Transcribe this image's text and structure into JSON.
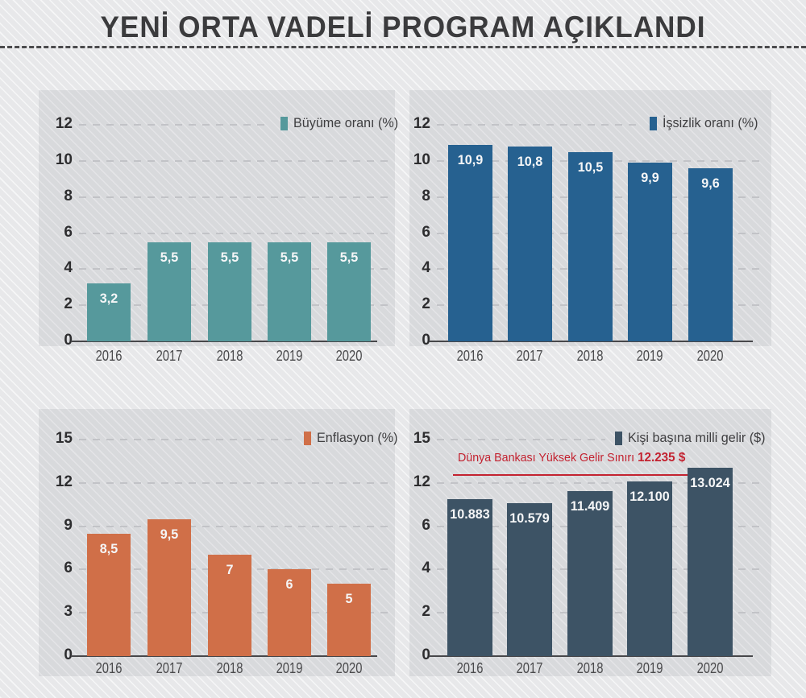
{
  "title": "YENİ ORTA VADELİ PROGRAM AÇIKLANDI",
  "colors": {
    "background": "#ebeced",
    "panel_tint": "#dfe0e3",
    "teal": "#56999c",
    "blue": "#266190",
    "orange": "#d06f48",
    "slate": "#3d5365",
    "red": "#c32230",
    "axis": "#47474a",
    "tick_text": "#2d2d2f",
    "value_text": "#f5f6f7"
  },
  "chart_data": [
    {
      "id": "growth",
      "type": "bar",
      "title": "",
      "legend": "Büyüme oranı (%)",
      "legend_position": "top-right",
      "color": "#56999c",
      "categories": [
        "2016",
        "2017",
        "2018",
        "2019",
        "2020"
      ],
      "values": [
        3.2,
        5.5,
        5.5,
        5.5,
        5.5
      ],
      "value_labels": [
        "3,2",
        "5,5",
        "5,5",
        "5,5",
        "5,5"
      ],
      "yticks": [
        "12",
        "10",
        "8",
        "6",
        "4",
        "2",
        "0"
      ],
      "ylim": [
        0,
        12
      ],
      "grid": true
    },
    {
      "id": "unemployment",
      "type": "bar",
      "title": "",
      "legend": "İşsizlik oranı (%)",
      "legend_position": "top-right",
      "color": "#266190",
      "categories": [
        "2016",
        "2017",
        "2018",
        "2019",
        "2020"
      ],
      "values": [
        10.9,
        10.8,
        10.5,
        9.9,
        9.6
      ],
      "value_labels": [
        "10,9",
        "10,8",
        "10,5",
        "9,9",
        "9,6"
      ],
      "yticks": [
        "12",
        "10",
        "8",
        "6",
        "4",
        "2",
        "0"
      ],
      "ylim": [
        0,
        12
      ],
      "grid": true
    },
    {
      "id": "inflation",
      "type": "bar",
      "title": "",
      "legend": "Enflasyon (%)",
      "legend_position": "top-right",
      "color": "#d06f48",
      "categories": [
        "2016",
        "2017",
        "2018",
        "2019",
        "2020"
      ],
      "values": [
        8.5,
        9.5,
        7,
        6,
        5
      ],
      "value_labels": [
        "8,5",
        "9,5",
        "7",
        "6",
        "5"
      ],
      "yticks": [
        "15",
        "12",
        "9",
        "6",
        "3",
        "0"
      ],
      "ylim": [
        0,
        15
      ],
      "grid": true
    },
    {
      "id": "income_per_capita",
      "type": "bar",
      "title": "",
      "legend": "Kişi başına milli gelir ($)",
      "legend_position": "top-right",
      "color": "#3d5365",
      "categories": [
        "2016",
        "2017",
        "2018",
        "2019",
        "2020"
      ],
      "values": [
        10.883,
        10.579,
        11.409,
        12.1,
        13.024
      ],
      "value_labels": [
        "10.883",
        "10.579",
        "11.409",
        "12.100",
        "13.024"
      ],
      "yticks": [
        "15",
        "12",
        "6",
        "4",
        "2",
        "0"
      ],
      "ylim": [
        0,
        15
      ],
      "grid": true,
      "threshold": {
        "label": "Dünya Bankası Yüksek Gelir Sınırı",
        "value_label": "12.235 $",
        "value": 12.235,
        "color": "#c32230"
      }
    }
  ]
}
